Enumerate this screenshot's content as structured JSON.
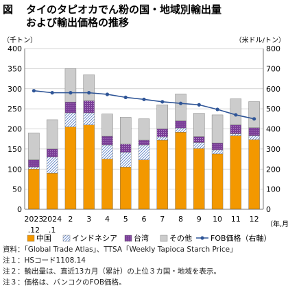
{
  "header": {
    "fig_label": "図",
    "title_line1": "タイのタピオカでん粉の国・地域別輸出量",
    "title_line2": "および輸出価格の推移"
  },
  "chart_data": {
    "type": "bar",
    "stacked": true,
    "categories": [
      "2023.12",
      "2024.1",
      "2",
      "3",
      "4",
      "5",
      "6",
      "7",
      "8",
      "9",
      "10",
      "11",
      "12"
    ],
    "tick_labels": [
      {
        "line1": "2023",
        "line2": ".12"
      },
      {
        "line1": "2024",
        "line2": ".1"
      },
      {
        "line1": "2",
        "line2": ""
      },
      {
        "line1": "3",
        "line2": ""
      },
      {
        "line1": "4",
        "line2": ""
      },
      {
        "line1": "5",
        "line2": ""
      },
      {
        "line1": "6",
        "line2": ""
      },
      {
        "line1": "7",
        "line2": ""
      },
      {
        "line1": "8",
        "line2": ""
      },
      {
        "line1": "9",
        "line2": ""
      },
      {
        "line1": "10",
        "line2": ""
      },
      {
        "line1": "11",
        "line2": ""
      },
      {
        "line1": "12",
        "line2": ""
      }
    ],
    "series": [
      {
        "name": "中国",
        "color": "#f39800",
        "pattern": "solid",
        "values": [
          100,
          90,
          205,
          210,
          125,
          105,
          123,
          172,
          192,
          151,
          138,
          183,
          173
        ]
      },
      {
        "name": "インドネシア",
        "color": "#9fb6e0",
        "pattern": "hatch",
        "values": [
          5,
          40,
          35,
          30,
          35,
          37,
          37,
          8,
          10,
          15,
          10,
          5,
          10
        ]
      },
      {
        "name": "台湾",
        "color": "#7b3f98",
        "pattern": "dotted",
        "values": [
          18,
          20,
          27,
          30,
          22,
          20,
          12,
          20,
          18,
          15,
          17,
          22,
          20
        ]
      },
      {
        "name": "その他",
        "color": "#cccccc",
        "pattern": "solid",
        "values": [
          67,
          73,
          83,
          65,
          55,
          67,
          53,
          60,
          67,
          58,
          70,
          65,
          65
        ]
      }
    ],
    "line_series": {
      "name": "FOB価格（右軸）",
      "color": "#2f5597",
      "values": [
        590,
        580,
        580,
        580,
        572,
        557,
        547,
        535,
        527,
        520,
        497,
        470,
        450
      ]
    },
    "y_left": {
      "label": "（千トン）",
      "min": 0,
      "max": 400,
      "step": 50
    },
    "y_right": {
      "label": "（米ドル/トン）",
      "min": 0,
      "max": 800,
      "step": 100
    },
    "x_unit": "（年,月）",
    "grid": true,
    "legend_position": "bottom"
  },
  "notes": [
    "資料：「Global Trade Atlas」、TTSA「Weekly Tapioca Starch Price」",
    "注１：HSコード1108.14",
    "注２：輸出量は、直近13カ月（累計）の上位３カ国・地域を表示。",
    "注３：価格は、バンコクのFOB価格。"
  ]
}
